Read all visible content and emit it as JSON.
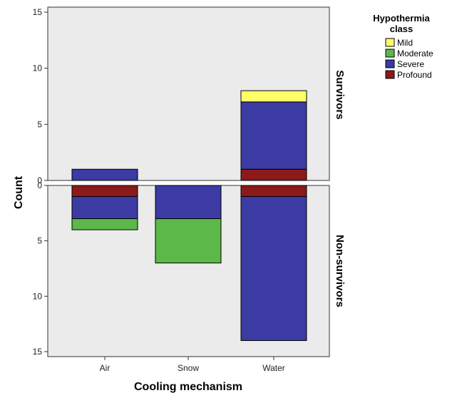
{
  "chart_data": {
    "type": "bar",
    "stacked": true,
    "title": "",
    "xlabel": "Cooling mechanism",
    "ylabel": "Count",
    "categories": [
      "Air",
      "Snow",
      "Water"
    ],
    "legend": {
      "title_lines": [
        "Hypothermia",
        "class"
      ],
      "position": "top-right",
      "entries": [
        {
          "name": "Mild",
          "color": "#ffff66"
        },
        {
          "name": "Moderate",
          "color": "#5cb848"
        },
        {
          "name": "Severe",
          "color": "#3b3ba3"
        },
        {
          "name": "Profound",
          "color": "#8b1a1a"
        }
      ]
    },
    "facets": [
      {
        "label": "Survivors",
        "direction": "up",
        "ylim": [
          0,
          15
        ],
        "yticks": [
          "15",
          "10",
          "5",
          "0"
        ],
        "stack_order": [
          "Profound",
          "Severe",
          "Moderate",
          "Mild"
        ],
        "series": [
          {
            "name": "Profound",
            "values": [
              0,
              0,
              1
            ]
          },
          {
            "name": "Severe",
            "values": [
              1,
              0,
              6
            ]
          },
          {
            "name": "Moderate",
            "values": [
              0,
              0,
              0
            ]
          },
          {
            "name": "Mild",
            "values": [
              0,
              0,
              1
            ]
          }
        ]
      },
      {
        "label": "Non-survivors",
        "direction": "down",
        "ylim": [
          0,
          15
        ],
        "yticks": [
          "0",
          "5",
          "10",
          "15"
        ],
        "stack_order": [
          "Profound",
          "Severe",
          "Moderate",
          "Mild"
        ],
        "series": [
          {
            "name": "Profound",
            "values": [
              1,
              0,
              1
            ]
          },
          {
            "name": "Severe",
            "values": [
              2,
              3,
              13
            ]
          },
          {
            "name": "Moderate",
            "values": [
              1,
              4,
              0
            ]
          },
          {
            "name": "Mild",
            "values": [
              0,
              0,
              0
            ]
          }
        ]
      }
    ],
    "grid": false
  }
}
